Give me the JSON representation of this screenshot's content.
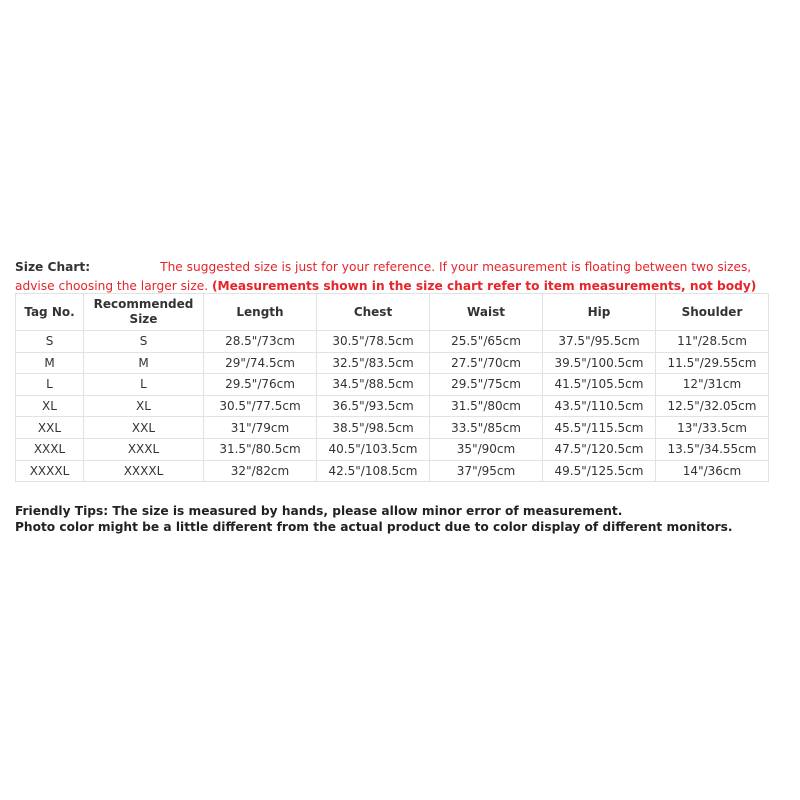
{
  "intro": {
    "label": "Size Chart:",
    "note": "The suggested size is just for your reference. If your measurement is floating between two sizes, advise choosing the larger size.",
    "note_bold": "(Measurements shown in the size chart refer to item measurements, not body)"
  },
  "table": {
    "headers": [
      "Tag No.",
      "Recommended Size",
      "Length",
      "Chest",
      "Waist",
      "Hip",
      "Shoulder"
    ],
    "rows": [
      [
        "S",
        "S",
        "28.5\"/73cm",
        "30.5\"/78.5cm",
        "25.5\"/65cm",
        "37.5\"/95.5cm",
        "11\"/28.5cm"
      ],
      [
        "M",
        "M",
        "29\"/74.5cm",
        "32.5\"/83.5cm",
        "27.5\"/70cm",
        "39.5\"/100.5cm",
        "11.5\"/29.55cm"
      ],
      [
        "L",
        "L",
        "29.5\"/76cm",
        "34.5\"/88.5cm",
        "29.5\"/75cm",
        "41.5\"/105.5cm",
        "12\"/31cm"
      ],
      [
        "XL",
        "XL",
        "30.5\"/77.5cm",
        "36.5\"/93.5cm",
        "31.5\"/80cm",
        "43.5\"/110.5cm",
        "12.5\"/32.05cm"
      ],
      [
        "XXL",
        "XXL",
        "31\"/79cm",
        "38.5\"/98.5cm",
        "33.5\"/85cm",
        "45.5\"/115.5cm",
        "13\"/33.5cm"
      ],
      [
        "XXXL",
        "XXXL",
        "31.5\"/80.5cm",
        "40.5\"/103.5cm",
        "35\"/90cm",
        "47.5\"/120.5cm",
        "13.5\"/34.55cm"
      ],
      [
        "XXXXL",
        "XXXXL",
        "32\"/82cm",
        "42.5\"/108.5cm",
        "37\"/95cm",
        "49.5\"/125.5cm",
        "14\"/36cm"
      ]
    ]
  },
  "tips": {
    "line1": "Friendly Tips: The size is measured by hands, please allow minor error of measurement.",
    "line2": "Photo color might be a little different from the actual product due to color display of different monitors."
  },
  "colors": {
    "note": "#e8232a",
    "text": "#333333",
    "border": "#e2e2e2"
  }
}
